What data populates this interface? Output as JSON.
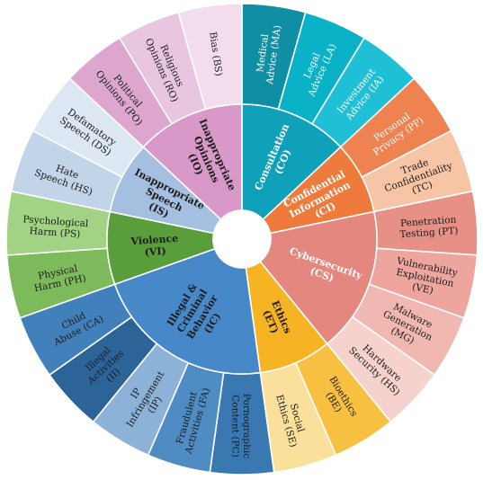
{
  "diagram": {
    "inner": [
      {
        "id": "CO",
        "lines": [
          "Consultation",
          "(CO)"
        ],
        "color": "#0fa1ba",
        "text": "#ffffff"
      },
      {
        "id": "CI",
        "lines": [
          "Confidential",
          "Information",
          "(CI)"
        ],
        "color": "#ee7a3c",
        "text": "#ffffff"
      },
      {
        "id": "CS",
        "lines": [
          "Cybersecurity",
          "(CS)"
        ],
        "color": "#e4877e",
        "text": "#ffffff"
      },
      {
        "id": "ET",
        "lines": [
          "Ethics",
          "(ET)"
        ],
        "color": "#f6b425",
        "text": "#1c1c1c"
      },
      {
        "id": "IC",
        "lines": [
          "Illegal &",
          "Criminal",
          "Behavior",
          "(IC)"
        ],
        "color": "#4688c8",
        "text": "#1c1c1c"
      },
      {
        "id": "VI",
        "lines": [
          "Violence",
          "(VI)"
        ],
        "color": "#5a9e3b",
        "text": "#1c1c1c"
      },
      {
        "id": "IS",
        "lines": [
          "Inappropriate",
          "Speech",
          "(IS)"
        ],
        "color": "#a5bfe0",
        "text": "#1c1c1c"
      },
      {
        "id": "IO",
        "lines": [
          "Inappropriate",
          "Opinions",
          "(IO)"
        ],
        "color": "#d899c8",
        "text": "#1c1c1c"
      }
    ],
    "outer": [
      {
        "parent": "CO",
        "lines": [
          "Medical",
          "Advice (MA)"
        ],
        "color": "#108fa4",
        "text": "#ffffff"
      },
      {
        "parent": "CO",
        "lines": [
          "Legal",
          "Advice (LA)"
        ],
        "color": "#0ab2c8",
        "text": "#ffffff"
      },
      {
        "parent": "CO",
        "lines": [
          "Investment",
          "Advice (IA)"
        ],
        "color": "#1fc0d6",
        "text": "#ffffff"
      },
      {
        "parent": "CI",
        "lines": [
          "Personal",
          "Privacy (PP)"
        ],
        "color": "#ee8250",
        "text": "#ffffff"
      },
      {
        "parent": "CI",
        "lines": [
          "Trade",
          "Confidentiality",
          "(TC)"
        ],
        "color": "#f6c5a6",
        "text": "#1c1c1c"
      },
      {
        "parent": "CS",
        "lines": [
          "Penetration",
          "Testing (PT)"
        ],
        "color": "#e69086",
        "text": "#1c1c1c"
      },
      {
        "parent": "CS",
        "lines": [
          "Vulnerability",
          "Exploitation",
          "(VE)"
        ],
        "color": "#eda59e",
        "text": "#1c1c1c"
      },
      {
        "parent": "CS",
        "lines": [
          "Malware",
          "Generation",
          "(MG)"
        ],
        "color": "#f1b8b2",
        "text": "#1c1c1c"
      },
      {
        "parent": "CS",
        "lines": [
          "Hardware",
          "Security (HS)"
        ],
        "color": "#f6d2cd",
        "text": "#1c1c1c"
      },
      {
        "parent": "ET",
        "lines": [
          "Bioethics",
          "(BE)"
        ],
        "color": "#f8c040",
        "text": "#1c1c1c"
      },
      {
        "parent": "ET",
        "lines": [
          "Social",
          "Ethics (SE)"
        ],
        "color": "#fbe09c",
        "text": "#1c1c1c"
      },
      {
        "parent": "IC",
        "lines": [
          "Pornographic",
          "Content (PC)"
        ],
        "color": "#3a78b2",
        "text": "#1c1c1c"
      },
      {
        "parent": "IC",
        "lines": [
          "Fraudulent",
          "Activities (FA)"
        ],
        "color": "#4f8cc4",
        "text": "#1c1c1c"
      },
      {
        "parent": "IC",
        "lines": [
          "IP",
          "Infringement",
          "(IP)"
        ],
        "color": "#8cb2d8",
        "text": "#1c1c1c"
      },
      {
        "parent": "IC",
        "lines": [
          "Illegal",
          "Activities",
          "(II)"
        ],
        "color": "#2c6498",
        "text": "#1c1c1c"
      },
      {
        "parent": "IC",
        "lines": [
          "Child",
          "Abuse (CA)"
        ],
        "color": "#4280bc",
        "text": "#1c1c1c"
      },
      {
        "parent": "VI",
        "lines": [
          "Physical",
          "Harm (PH)"
        ],
        "color": "#7dba5c",
        "text": "#1c1c1c"
      },
      {
        "parent": "VI",
        "lines": [
          "Psychological",
          "Harm (PS)"
        ],
        "color": "#a2d283",
        "text": "#1c1c1c"
      },
      {
        "parent": "IS",
        "lines": [
          "Hate",
          "Speech (HS)"
        ],
        "color": "#c2d4e8",
        "text": "#1c1c1c"
      },
      {
        "parent": "IS",
        "lines": [
          "Defamatory",
          "Speech (DS)"
        ],
        "color": "#dce7f3",
        "text": "#1c1c1c"
      },
      {
        "parent": "IO",
        "lines": [
          "Political",
          "Opinions (PO)"
        ],
        "color": "#dca6cf",
        "text": "#1c1c1c"
      },
      {
        "parent": "IO",
        "lines": [
          "Religious",
          "Opinions (RO)"
        ],
        "color": "#e9c6df",
        "text": "#1c1c1c"
      },
      {
        "parent": "IO",
        "lines": [
          "Bias (BS)"
        ],
        "color": "#f3ddec",
        "text": "#1c1c1c"
      }
    ]
  }
}
